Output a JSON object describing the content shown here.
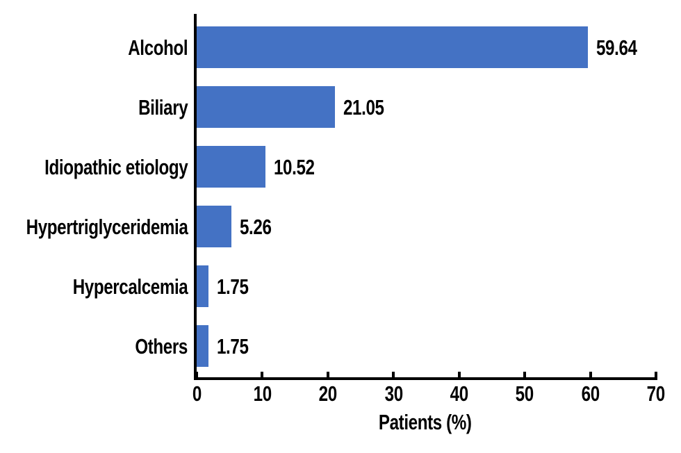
{
  "figure": {
    "background": "#FFFFFF"
  },
  "chart_data": {
    "type": "bar",
    "orientation": "horizontal",
    "categories": [
      "Alcohol",
      "Biliary",
      "Idiopathic etiology",
      "Hypertriglyceridemia",
      "Hypercalcemia",
      "Others"
    ],
    "values": [
      59.64,
      21.05,
      10.52,
      5.26,
      1.75,
      1.75
    ],
    "value_labels": [
      "59.64",
      "21.05",
      "10.52",
      "5.26",
      "1.75",
      "1.75"
    ],
    "xlabel": "Patients (%)",
    "xlim": [
      0,
      70
    ],
    "xticks": [
      0,
      10,
      20,
      30,
      40,
      50,
      60,
      70
    ],
    "grid": false,
    "legend": "none",
    "bar_color": "#4472C4",
    "axis_color": "#000000",
    "text_color": "#000000"
  }
}
